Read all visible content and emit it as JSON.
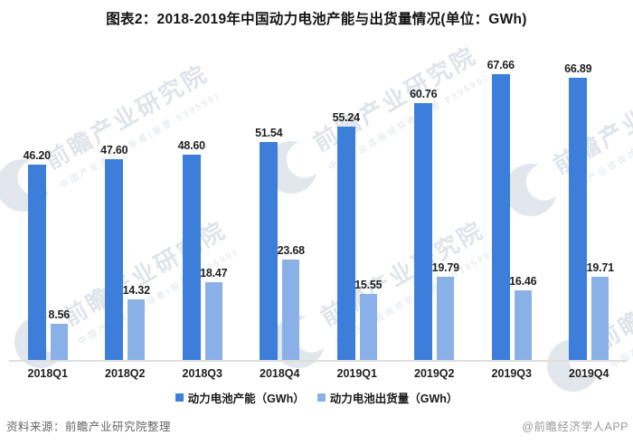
{
  "title": "图表2：2018-2019年中国动力电池产能与出货量情况(单位：GWh)",
  "chart_data": {
    "type": "bar",
    "unit": "GWh",
    "categories": [
      "2018Q1",
      "2018Q2",
      "2018Q3",
      "2018Q4",
      "2019Q1",
      "2019Q2",
      "2019Q3",
      "2019Q4"
    ],
    "series": [
      {
        "name": "动力电池产能（GWh）",
        "color": "#3d7edb",
        "values": [
          46.2,
          47.6,
          48.6,
          51.54,
          55.24,
          60.76,
          67.66,
          66.89
        ]
      },
      {
        "name": "动力电池出货量（GWh）",
        "color": "#8ab0e8",
        "values": [
          8.56,
          14.32,
          18.47,
          23.68,
          15.55,
          19.79,
          16.46,
          19.71
        ]
      }
    ],
    "ylim": [
      0,
      72
    ],
    "grid": false,
    "axis_line_color": "#dedede",
    "legend_position": "bottom",
    "value_labels": true,
    "value_label_decimals": 2
  },
  "watermark": {
    "brand": "前瞻产业研究院",
    "tagline": "中国产业咨询领导者(股票:839599)"
  },
  "footer": {
    "source": "资料来源：前瞻产业研究院整理",
    "credit": "@前瞻经济学人APP"
  }
}
